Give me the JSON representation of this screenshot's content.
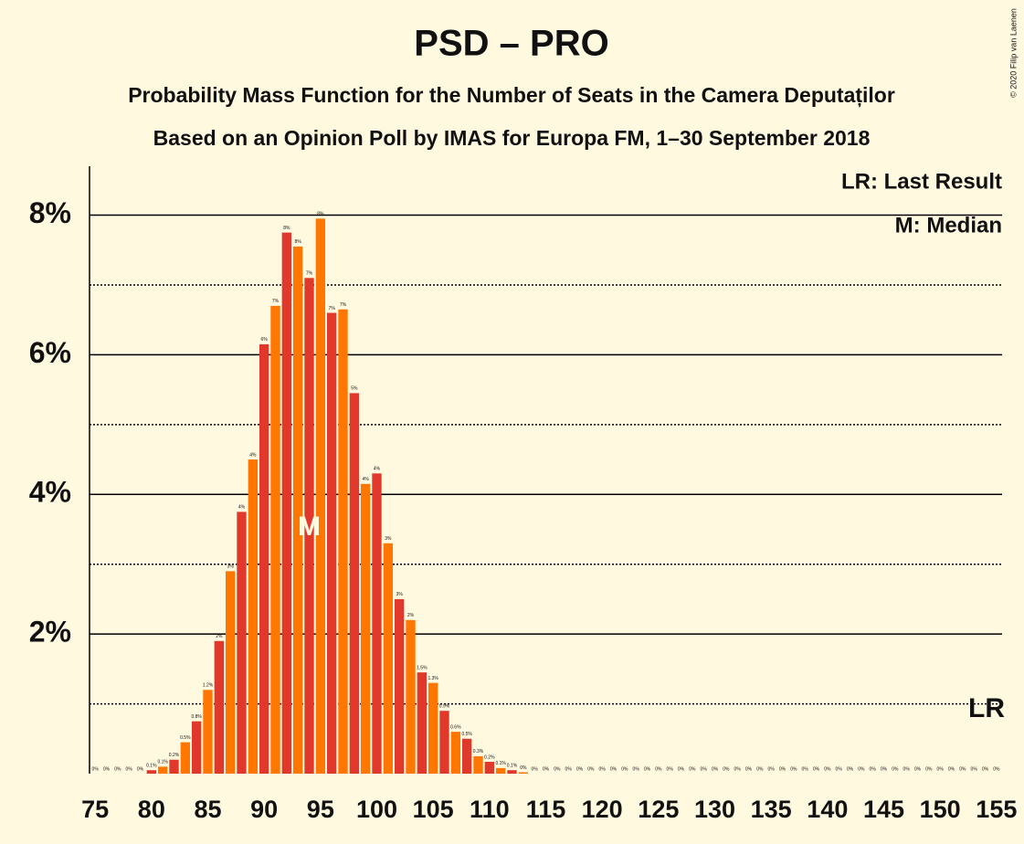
{
  "chart_data": {
    "type": "bar",
    "title": "PSD – PRO",
    "subtitle": "Probability Mass Function for the Number of Seats in the Camera Deputaților",
    "subtitle2": "Based on an Opinion Poll by IMAS for Europa FM, 1–30 September 2018",
    "copyright": "© 2020 Filip van Laenen",
    "legend": [
      "LR: Last Result",
      "M: Median"
    ],
    "median": 94,
    "median_label": "M",
    "last_result": 155,
    "last_result_label": "LR",
    "bar_colors": [
      "#e0392b",
      "#ff7700"
    ],
    "x": [
      75,
      76,
      77,
      78,
      79,
      80,
      81,
      82,
      83,
      84,
      85,
      86,
      87,
      88,
      89,
      90,
      91,
      92,
      93,
      94,
      95,
      96,
      97,
      98,
      99,
      100,
      101,
      102,
      103,
      104,
      105,
      106,
      107,
      108,
      109,
      110,
      111,
      112,
      113,
      114,
      115,
      116,
      117,
      118,
      119,
      120,
      121,
      122,
      123,
      124,
      125,
      126,
      127,
      128,
      129,
      130,
      131,
      132,
      133,
      134,
      135,
      136,
      137,
      138,
      139,
      140,
      141,
      142,
      143,
      144,
      145,
      146,
      147,
      148,
      149,
      150,
      151,
      152,
      153,
      154,
      155
    ],
    "values": [
      0,
      0,
      0,
      0,
      0,
      0.05,
      0.1,
      0.2,
      0.45,
      0.75,
      1.2,
      1.9,
      2.9,
      3.75,
      4.5,
      6.15,
      6.7,
      7.75,
      7.55,
      7.1,
      7.95,
      6.6,
      6.65,
      5.45,
      4.15,
      4.3,
      3.3,
      2.5,
      2.2,
      1.45,
      1.3,
      0.9,
      0.6,
      0.5,
      0.25,
      0.17,
      0.08,
      0.05,
      0.02,
      0,
      0,
      0,
      0,
      0,
      0,
      0,
      0,
      0,
      0,
      0,
      0,
      0,
      0,
      0,
      0,
      0,
      0,
      0,
      0,
      0,
      0,
      0,
      0,
      0,
      0,
      0,
      0,
      0,
      0,
      0,
      0,
      0,
      0,
      0,
      0,
      0,
      0,
      0,
      0,
      0,
      0
    ],
    "value_labels": [
      "0%",
      "0%",
      "0%",
      "0%",
      "0%",
      "0.1%",
      "0.1%",
      "0.2%",
      "0.5%",
      "0.8%",
      "1.2%",
      "2%",
      "3%",
      "4%",
      "4%",
      "6%",
      "7%",
      "8%",
      "8%",
      "7%",
      "8%",
      "7%",
      "7%",
      "5%",
      "4%",
      "4%",
      "3%",
      "3%",
      "2%",
      "1.5%",
      "1.3%",
      "0.9%",
      "0.6%",
      "0.5%",
      "0.3%",
      "0.2%",
      "0.1%",
      "0.1%",
      "0%",
      "0%",
      "0%",
      "0%",
      "0%",
      "0%",
      "0%",
      "0%",
      "0%",
      "0%",
      "0%",
      "0%",
      "0%",
      "0%",
      "0%",
      "0%",
      "0%",
      "0%",
      "0%",
      "0%",
      "0%",
      "0%",
      "0%",
      "0%",
      "0%",
      "0%",
      "0%",
      "0%",
      "0%",
      "0%",
      "0%",
      "0%",
      "0%",
      "0%",
      "0%",
      "0%",
      "0%",
      "0%",
      "0%",
      "0%",
      "0%",
      "0%",
      "0%"
    ],
    "xlim": [
      74.5,
      155.5
    ],
    "xticks": [
      75,
      80,
      85,
      90,
      95,
      100,
      105,
      110,
      115,
      120,
      125,
      130,
      135,
      140,
      145,
      150,
      155
    ],
    "ylim": [
      0,
      8.7
    ],
    "yticks": [
      {
        "value": 2,
        "label": "2%"
      },
      {
        "value": 4,
        "label": "4%"
      },
      {
        "value": 6,
        "label": "6%"
      },
      {
        "value": 8,
        "label": "8%"
      }
    ],
    "minor_yticks": [
      1,
      3,
      5,
      7
    ],
    "grid": true
  }
}
